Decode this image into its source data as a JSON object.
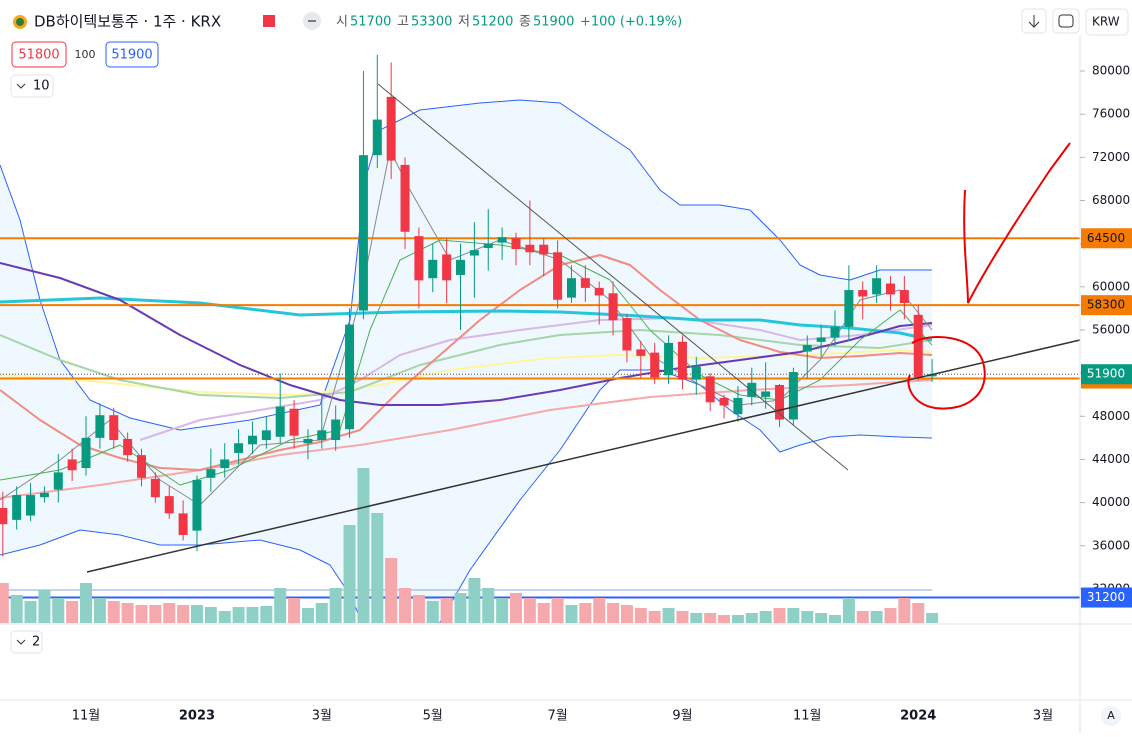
{
  "ui": {
    "symbol": "DB하이텍보통주 · 1주 · KRX",
    "open_label": "시",
    "open": 51700,
    "high_label": "고",
    "high": 53300,
    "low_label": "저",
    "low": 51200,
    "close_label": "종",
    "close": 51900,
    "change": "+100 (+0.19%)",
    "bid": 51800,
    "spread": 100,
    "ask": 51900,
    "indicator_count": "10",
    "pane_count": "2",
    "currency": "KRW",
    "scale_mode": "A"
  },
  "chart_data": {
    "type": "candlestick",
    "categories": [
      null,
      null,
      null,
      null,
      null,
      null,
      "11월",
      null,
      null,
      null,
      null,
      null,
      null,
      null,
      "2023",
      null,
      null,
      null,
      null,
      null,
      null,
      null,
      null,
      "3월",
      null,
      null,
      null,
      null,
      null,
      null,
      null,
      "5월",
      null,
      null,
      null,
      null,
      null,
      null,
      null,
      null,
      "7월",
      null,
      null,
      null,
      null,
      null,
      null,
      null,
      null,
      "9월",
      null,
      null,
      null,
      null,
      null,
      null,
      null,
      null,
      "11월",
      null,
      null,
      null,
      null,
      null,
      null,
      null,
      "2024",
      null,
      null,
      null,
      null,
      null,
      null,
      null,
      null,
      "3월",
      null,
      null
    ],
    "open": [
      39500,
      38400,
      38800,
      40500,
      41200,
      44000,
      43200,
      46000,
      48100,
      45900,
      44400,
      42200,
      40600,
      39000,
      37400,
      42300,
      43200,
      44600,
      45400,
      45800,
      46100,
      48700,
      45500,
      45800,
      45800,
      46800,
      57800,
      72200,
      77600,
      71300,
      64700,
      60800,
      63000,
      61100,
      62900,
      63600,
      64100,
      64500,
      63900,
      63900,
      63200,
      59000,
      60800,
      59900,
      59400,
      57100,
      54200,
      53900,
      51800,
      54900,
      51400,
      51700,
      49700,
      48200,
      49800,
      49800,
      50900,
      47700,
      54000,
      54900,
      55300,
      56300,
      59700,
      59300,
      60300,
      59700,
      57400,
      51700,
      null,
      null,
      null,
      null,
      null,
      null,
      null,
      null,
      null,
      null
    ],
    "high": [
      41000,
      41500,
      41800,
      41500,
      44500,
      45000,
      48000,
      49200,
      48800,
      46500,
      45000,
      42800,
      41500,
      40200,
      42500,
      45000,
      45500,
      46800,
      47500,
      48000,
      52000,
      49500,
      46800,
      50000,
      49000,
      58000,
      80000,
      81500,
      80800,
      72000,
      65500,
      64000,
      64500,
      64000,
      66000,
      67200,
      65500,
      65000,
      68000,
      64500,
      64300,
      62000,
      62000,
      60500,
      60500,
      57500,
      55000,
      54800,
      55500,
      55500,
      53500,
      52000,
      50000,
      50800,
      52500,
      53000,
      51000,
      52500,
      55500,
      56500,
      57800,
      62000,
      60500,
      62000,
      61000,
      61000,
      58300,
      53300,
      null,
      null,
      null,
      null,
      null,
      null,
      null,
      null,
      null,
      null
    ],
    "low": [
      35000,
      37500,
      38300,
      40000,
      40000,
      42000,
      42500,
      45000,
      45000,
      43800,
      41500,
      40000,
      38500,
      36500,
      35500,
      41000,
      42300,
      43500,
      44500,
      45000,
      45500,
      45000,
      44000,
      45000,
      44800,
      46000,
      57000,
      71000,
      70000,
      63500,
      58000,
      59500,
      58500,
      56000,
      59000,
      61500,
      62500,
      62000,
      62000,
      61000,
      58000,
      58500,
      58600,
      56500,
      55500,
      53000,
      51500,
      51000,
      51000,
      50500,
      50000,
      48500,
      47800,
      47500,
      49000,
      48700,
      47000,
      47200,
      51500,
      53500,
      54500,
      55000,
      57000,
      58500,
      57800,
      57000,
      51300,
      51200,
      null,
      null,
      null,
      null,
      null,
      null,
      null,
      null,
      null,
      null
    ],
    "close": [
      38000,
      40700,
      40700,
      40900,
      42800,
      43000,
      46000,
      48100,
      45800,
      44400,
      42300,
      40500,
      39000,
      37000,
      42100,
      43100,
      44000,
      45500,
      46200,
      46700,
      48900,
      46200,
      45900,
      46700,
      47700,
      56500,
      72200,
      75500,
      71700,
      65100,
      60600,
      62500,
      60600,
      62500,
      63400,
      64000,
      64600,
      63500,
      63200,
      63000,
      58800,
      60800,
      59900,
      59200,
      56900,
      54100,
      53600,
      51600,
      54800,
      51400,
      52600,
      49300,
      49000,
      49700,
      51100,
      50300,
      47700,
      52100,
      54600,
      55300,
      56300,
      59700,
      59100,
      60800,
      59300,
      58500,
      51600,
      51900,
      null,
      null,
      null,
      null,
      null,
      null,
      null,
      null,
      null,
      null
    ],
    "volume": [
      40,
      28,
      22,
      33,
      25,
      22,
      40,
      25,
      22,
      20,
      18,
      18,
      20,
      18,
      18,
      16,
      12,
      16,
      16,
      17,
      35,
      25,
      15,
      20,
      35,
      98,
      155,
      110,
      65,
      35,
      28,
      22,
      25,
      30,
      45,
      35,
      25,
      30,
      25,
      20,
      25,
      18,
      20,
      25,
      20,
      18,
      15,
      12,
      15,
      12,
      10,
      10,
      8,
      8,
      10,
      12,
      15,
      15,
      12,
      10,
      8,
      25,
      12,
      12,
      15,
      25,
      20,
      10,
      null,
      null,
      null,
      null,
      null,
      null,
      null,
      null,
      null,
      null
    ],
    "volume_ylim": [
      0,
      160
    ],
    "up_color": "#089981",
    "down_color": "#f23645",
    "volume_up_color": "#8fd0c6",
    "volume_down_color": "#f5a9ad",
    "ylim": [
      28840,
      83340
    ],
    "yticks": [
      32000,
      36000,
      40000,
      44000,
      48000,
      52000,
      56000,
      60000,
      64000,
      68000,
      72000,
      76000,
      80000
    ],
    "grid": false,
    "price_lines": [
      {
        "value": 64500,
        "color": "#f57c00",
        "text_color": "#131722"
      },
      {
        "value": 58300,
        "color": "#f57c00",
        "text_color": "#131722"
      },
      {
        "value": 51500,
        "color": "#f57c00",
        "text_color": "#131722"
      },
      {
        "value": 51900,
        "color": "#089981",
        "text_color": "#ffffff",
        "style": "dotted"
      },
      {
        "value": 31200,
        "color": "#2962ff",
        "text_color": "#ffffff"
      }
    ]
  }
}
